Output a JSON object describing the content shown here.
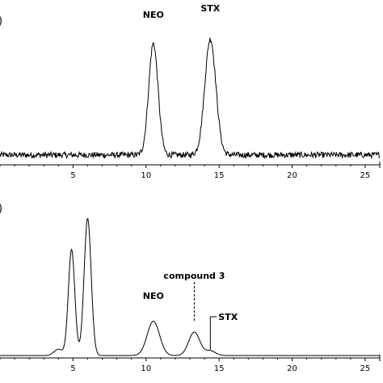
{
  "chart_data": [
    {
      "type": "line",
      "panel_label": ")",
      "title": "",
      "xlabel": "",
      "ylabel": "",
      "xlim": [
        0,
        26
      ],
      "x_ticks": [
        5,
        10,
        15,
        20,
        25
      ],
      "x_tick_labels": [
        "5",
        "10",
        "15",
        "20",
        "25"
      ],
      "baseline": 0.05,
      "noise": 0.02,
      "series": [
        {
          "peaks": [
            {
              "x": 10.5,
              "height": 0.75,
              "width": 0.32
            },
            {
              "x": 14.4,
              "height": 0.78,
              "width": 0.38
            }
          ]
        }
      ],
      "annotations": [
        {
          "text": "NEO",
          "x": 10.5
        },
        {
          "text": "STX",
          "x": 14.4
        }
      ]
    },
    {
      "type": "line",
      "panel_label": ")",
      "title": "",
      "xlabel": "",
      "ylabel": "",
      "xlim": [
        0,
        26
      ],
      "x_ticks": [
        5,
        10,
        15,
        20,
        25
      ],
      "x_tick_labels": [
        "5",
        "10",
        "15",
        "20",
        "25"
      ],
      "baseline": 0.0,
      "noise": 0.0,
      "series": [
        {
          "peaks": [
            {
              "x": 4.0,
              "height": 0.04,
              "width": 0.3
            },
            {
              "x": 4.9,
              "height": 0.68,
              "width": 0.22
            },
            {
              "x": 6.0,
              "height": 0.88,
              "width": 0.24
            },
            {
              "x": 10.5,
              "height": 0.22,
              "width": 0.42
            },
            {
              "x": 13.3,
              "height": 0.15,
              "width": 0.38
            },
            {
              "x": 14.4,
              "height": 0.03,
              "width": 0.35
            }
          ]
        }
      ],
      "annotations": [
        {
          "text": "NEO",
          "x": 10.5
        },
        {
          "text": "compound 3",
          "x": 13.3
        },
        {
          "text": "STX",
          "x": 14.4
        }
      ]
    }
  ]
}
